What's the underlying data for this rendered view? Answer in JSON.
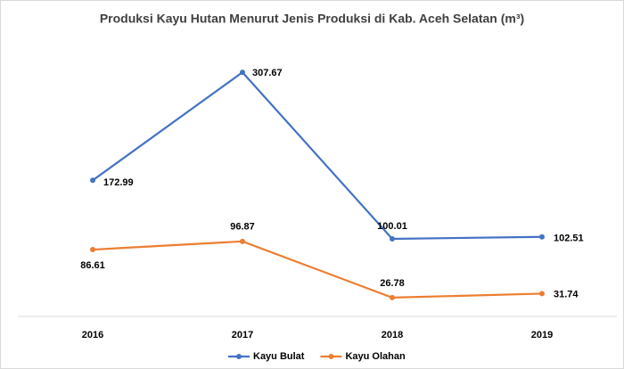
{
  "chart_data": {
    "type": "line",
    "title": "Produksi Kayu Hutan Menurut Jenis Produksi di Kab. Aceh Selatan (m³)",
    "categories": [
      "2016",
      "2017",
      "2018",
      "2019"
    ],
    "series": [
      {
        "name": "Kayu Bulat",
        "color": "#4472c4",
        "values": [
          172.99,
          307.67,
          100.01,
          102.51
        ]
      },
      {
        "name": "Kayu Olahan",
        "color": "#ed7d31",
        "values": [
          86.61,
          96.87,
          26.78,
          31.74
        ]
      }
    ],
    "ylim": [
      0,
      350
    ],
    "grid": false,
    "legend": "bottom"
  }
}
